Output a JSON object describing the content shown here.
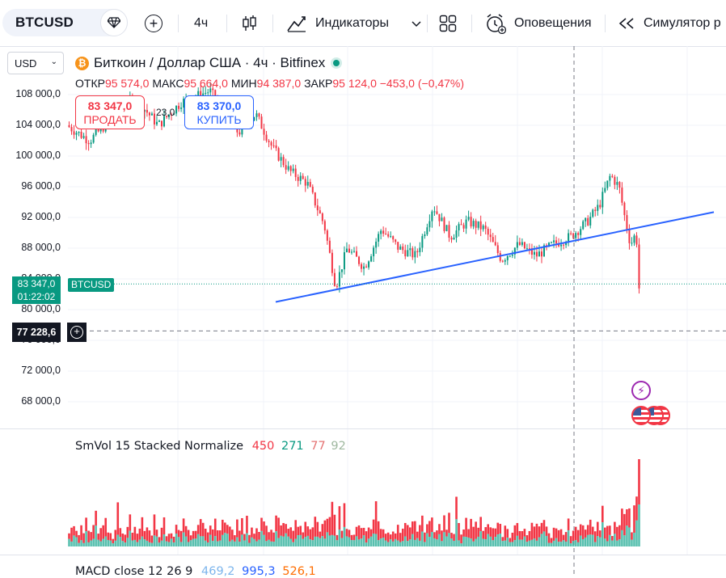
{
  "toolbar": {
    "symbol": "BTCUSD",
    "interval": "4ч",
    "indicators_label": "Индикаторы",
    "alerts_label": "Оповещения",
    "replay_label": "Симулятор р"
  },
  "chart": {
    "currency": "USD",
    "title": "Биткоин / Доллар США · 4ч · Bitfinex",
    "ohlc": {
      "open_label": "ОТКР",
      "open": "95 574,0",
      "high_label": "МАКС",
      "high": "95 664,0",
      "low_label": "МИН",
      "low": "94 387,0",
      "close_label": "ЗАКР",
      "close": "95 124,0",
      "change": "−453,0 (−0,47%)"
    },
    "sell": {
      "price": "83 347,0",
      "label": "ПРОДАТЬ"
    },
    "buy": {
      "price": "83 370,0",
      "label": "КУПИТЬ"
    },
    "spread": "23,0",
    "last_price": "83 347,0",
    "countdown": "01:22:02",
    "last_symbol": "BTCUSD",
    "crosshair_price": "77 228,6",
    "y_axis_labels": [
      "108 000,0",
      "104 000,0",
      "100 000,0",
      "96 000,0",
      "92 000,0",
      "88 000,0",
      "84 000,0",
      "80 000,0",
      "76 000,0",
      "72 000,0",
      "68 000,0"
    ],
    "colors": {
      "up": "#089981",
      "down": "#f23645",
      "trendline": "#2962ff",
      "event": "#9c27b0"
    }
  },
  "indicator": {
    "name": "SmVol 15 Stacked Normalize",
    "v1": "450",
    "v2": "271",
    "v3": "77",
    "v4": "92"
  },
  "macd": {
    "name": "MACD close 12 26 9",
    "v1": "469,2",
    "v2": "995,3",
    "v3": "526,1"
  },
  "chart_data": {
    "type": "candlestick",
    "y_axis": {
      "range": [
        65000,
        112000
      ],
      "unit": "USD"
    },
    "trendline_from": 81000,
    "trendline_to": 92700,
    "crosshair_level": 77228.6,
    "current_price": 83347,
    "path_anchors": [
      {
        "x": 0.0,
        "y": 104000
      },
      {
        "x": 0.04,
        "y": 102000
      },
      {
        "x": 0.08,
        "y": 105000
      },
      {
        "x": 0.12,
        "y": 107500
      },
      {
        "x": 0.16,
        "y": 104000
      },
      {
        "x": 0.2,
        "y": 107000
      },
      {
        "x": 0.25,
        "y": 108500
      },
      {
        "x": 0.3,
        "y": 103000
      },
      {
        "x": 0.33,
        "y": 105500
      },
      {
        "x": 0.36,
        "y": 101000
      },
      {
        "x": 0.39,
        "y": 98000
      },
      {
        "x": 0.42,
        "y": 96500
      },
      {
        "x": 0.45,
        "y": 91000
      },
      {
        "x": 0.47,
        "y": 83000
      },
      {
        "x": 0.49,
        "y": 88000
      },
      {
        "x": 0.52,
        "y": 85500
      },
      {
        "x": 0.55,
        "y": 90500
      },
      {
        "x": 0.58,
        "y": 88000
      },
      {
        "x": 0.61,
        "y": 87000
      },
      {
        "x": 0.64,
        "y": 93500
      },
      {
        "x": 0.67,
        "y": 89500
      },
      {
        "x": 0.7,
        "y": 91500
      },
      {
        "x": 0.73,
        "y": 90500
      },
      {
        "x": 0.76,
        "y": 86500
      },
      {
        "x": 0.79,
        "y": 88500
      },
      {
        "x": 0.82,
        "y": 87000
      },
      {
        "x": 0.85,
        "y": 88500
      },
      {
        "x": 0.88,
        "y": 89500
      },
      {
        "x": 0.91,
        "y": 91500
      },
      {
        "x": 0.93,
        "y": 93500
      },
      {
        "x": 0.95,
        "y": 97500
      },
      {
        "x": 0.965,
        "y": 96000
      },
      {
        "x": 0.975,
        "y": 92000
      },
      {
        "x": 0.985,
        "y": 88500
      },
      {
        "x": 0.995,
        "y": 90000
      },
      {
        "x": 1.0,
        "y": 82800
      }
    ]
  }
}
